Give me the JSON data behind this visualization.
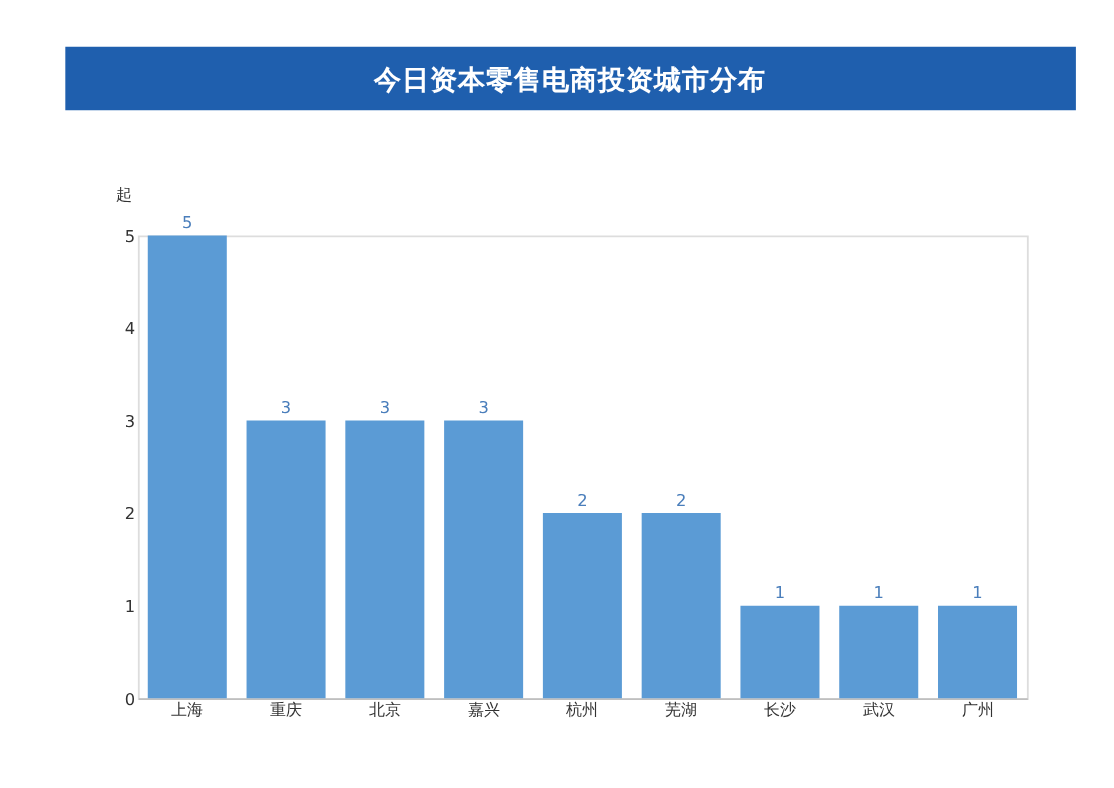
{
  "chart_data": {
    "type": "bar",
    "title": "今日资本零售电商投资城市分布",
    "ylabel": "起",
    "categories": [
      "上海",
      "重庆",
      "北京",
      "嘉兴",
      "杭州",
      "芜湖",
      "长沙",
      "武汉",
      "广州"
    ],
    "values": [
      5,
      3,
      3,
      3,
      2,
      2,
      1,
      1,
      1
    ],
    "color": "#5b9bd5",
    "ylim": [
      0,
      5
    ],
    "yticks": [
      0,
      1,
      2,
      3,
      4,
      5
    ],
    "data_labels": true,
    "grid": false
  }
}
